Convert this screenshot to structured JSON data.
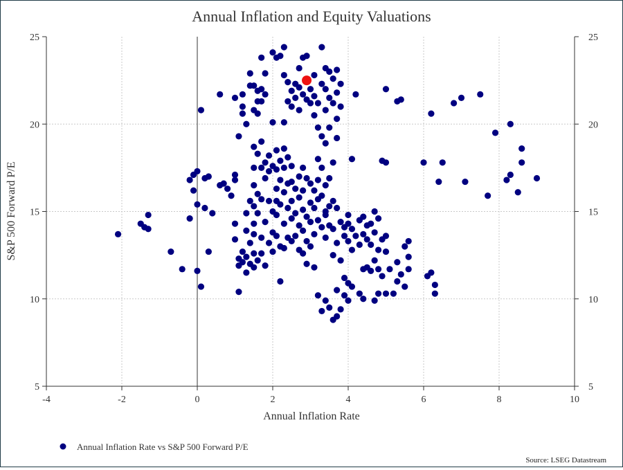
{
  "chart_data": {
    "type": "scatter",
    "title": "Annual Inflation and Equity Valuations",
    "xlabel": "Annual Inflation Rate",
    "ylabel": "S&P 500 Forward P/E",
    "xlim": [
      -4,
      10
    ],
    "ylim": [
      5,
      25
    ],
    "x_ticks": [
      -4,
      -2,
      0,
      2,
      4,
      6,
      8,
      10
    ],
    "y_ticks": [
      5,
      10,
      15,
      20,
      25
    ],
    "grid": true,
    "right_axis": true,
    "zero_line": true,
    "legend_position": "bottom-left",
    "source": "Source: LSEG Datastream",
    "colors": {
      "series": "#000080",
      "highlight": "#ee1111"
    },
    "series": [
      {
        "name": "Annual Inflation Rate vs S&P 500 Forward P/E",
        "points": [
          [
            -2.1,
            13.7
          ],
          [
            -1.5,
            14.3
          ],
          [
            -1.4,
            14.1
          ],
          [
            -1.3,
            14.8
          ],
          [
            -1.3,
            14.0
          ],
          [
            -0.7,
            12.7
          ],
          [
            -0.4,
            11.7
          ],
          [
            -0.2,
            16.8
          ],
          [
            -0.2,
            14.6
          ],
          [
            -0.1,
            16.2
          ],
          [
            -0.1,
            17.1
          ],
          [
            0.0,
            17.3
          ],
          [
            0.0,
            15.4
          ],
          [
            0.0,
            11.6
          ],
          [
            0.1,
            20.8
          ],
          [
            0.1,
            10.7
          ],
          [
            0.2,
            15.2
          ],
          [
            0.2,
            16.9
          ],
          [
            0.3,
            12.7
          ],
          [
            0.3,
            17.0
          ],
          [
            0.4,
            14.9
          ],
          [
            0.6,
            16.5
          ],
          [
            0.6,
            21.7
          ],
          [
            0.7,
            16.6
          ],
          [
            0.8,
            16.3
          ],
          [
            0.9,
            15.9
          ],
          [
            1.0,
            17.1
          ],
          [
            1.0,
            16.8
          ],
          [
            1.0,
            14.3
          ],
          [
            1.0,
            21.5
          ],
          [
            1.0,
            13.4
          ],
          [
            1.1,
            10.4
          ],
          [
            1.1,
            12.3
          ],
          [
            1.1,
            11.9
          ],
          [
            1.1,
            19.3
          ],
          [
            1.2,
            21.7
          ],
          [
            1.2,
            21.0
          ],
          [
            1.2,
            20.6
          ],
          [
            1.2,
            12.7
          ],
          [
            1.2,
            12.1
          ],
          [
            1.3,
            11.5
          ],
          [
            1.3,
            12.4
          ],
          [
            1.3,
            14.9
          ],
          [
            1.3,
            13.9
          ],
          [
            1.3,
            20.0
          ],
          [
            1.4,
            22.2
          ],
          [
            1.4,
            22.9
          ],
          [
            1.4,
            15.6
          ],
          [
            1.4,
            13.2
          ],
          [
            1.4,
            12.0
          ],
          [
            1.5,
            22.2
          ],
          [
            1.5,
            20.8
          ],
          [
            1.5,
            18.7
          ],
          [
            1.5,
            17.5
          ],
          [
            1.5,
            16.5
          ],
          [
            1.5,
            15.3
          ],
          [
            1.5,
            14.3
          ],
          [
            1.5,
            13.7
          ],
          [
            1.5,
            12.6
          ],
          [
            1.5,
            11.8
          ],
          [
            1.6,
            21.9
          ],
          [
            1.6,
            21.3
          ],
          [
            1.6,
            20.6
          ],
          [
            1.6,
            18.3
          ],
          [
            1.6,
            16.0
          ],
          [
            1.6,
            14.9
          ],
          [
            1.6,
            12.2
          ],
          [
            1.7,
            23.8
          ],
          [
            1.7,
            22.0
          ],
          [
            1.7,
            21.3
          ],
          [
            1.7,
            19.0
          ],
          [
            1.7,
            17.5
          ],
          [
            1.7,
            15.7
          ],
          [
            1.7,
            13.5
          ],
          [
            1.7,
            12.6
          ],
          [
            1.8,
            22.9
          ],
          [
            1.8,
            21.7
          ],
          [
            1.8,
            17.8
          ],
          [
            1.8,
            16.9
          ],
          [
            1.8,
            14.4
          ],
          [
            1.8,
            11.9
          ],
          [
            1.9,
            18.2
          ],
          [
            1.9,
            17.3
          ],
          [
            1.9,
            15.6
          ],
          [
            1.9,
            13.2
          ],
          [
            2.0,
            24.1
          ],
          [
            2.0,
            20.1
          ],
          [
            2.0,
            17.6
          ],
          [
            2.0,
            15.0
          ],
          [
            2.0,
            13.8
          ],
          [
            2.0,
            12.7
          ],
          [
            2.1,
            23.8
          ],
          [
            2.1,
            18.5
          ],
          [
            2.1,
            17.4
          ],
          [
            2.1,
            16.3
          ],
          [
            2.1,
            14.8
          ],
          [
            2.1,
            13.6
          ],
          [
            2.2,
            23.9
          ],
          [
            2.2,
            17.9
          ],
          [
            2.2,
            16.8
          ],
          [
            2.2,
            15.4
          ],
          [
            2.2,
            13.0
          ],
          [
            2.2,
            11.0
          ],
          [
            2.3,
            24.4
          ],
          [
            2.3,
            22.8
          ],
          [
            2.3,
            20.1
          ],
          [
            2.3,
            18.6
          ],
          [
            2.3,
            17.5
          ],
          [
            2.3,
            16.1
          ],
          [
            2.3,
            14.3
          ],
          [
            2.3,
            12.9
          ],
          [
            2.4,
            22.4
          ],
          [
            2.4,
            21.3
          ],
          [
            2.4,
            18.1
          ],
          [
            2.4,
            16.6
          ],
          [
            2.4,
            15.2
          ],
          [
            2.4,
            13.5
          ],
          [
            2.5,
            21.9
          ],
          [
            2.5,
            21.0
          ],
          [
            2.5,
            17.6
          ],
          [
            2.5,
            16.7
          ],
          [
            2.5,
            15.6
          ],
          [
            2.5,
            14.6
          ],
          [
            2.5,
            13.3
          ],
          [
            2.6,
            22.3
          ],
          [
            2.6,
            21.5
          ],
          [
            2.6,
            16.3
          ],
          [
            2.6,
            14.9
          ],
          [
            2.6,
            13.6
          ],
          [
            2.7,
            23.2
          ],
          [
            2.7,
            22.1
          ],
          [
            2.7,
            20.8
          ],
          [
            2.7,
            17.0
          ],
          [
            2.7,
            15.8
          ],
          [
            2.7,
            14.2
          ],
          [
            2.7,
            12.8
          ],
          [
            2.8,
            23.8
          ],
          [
            2.8,
            21.7
          ],
          [
            2.8,
            17.5
          ],
          [
            2.8,
            16.2
          ],
          [
            2.8,
            15.1
          ],
          [
            2.8,
            13.9
          ],
          [
            2.8,
            12.6
          ],
          [
            2.9,
            23.9
          ],
          [
            2.9,
            21.4
          ],
          [
            2.9,
            16.9
          ],
          [
            2.9,
            14.7
          ],
          [
            2.9,
            13.3
          ],
          [
            2.9,
            12.0
          ],
          [
            3.0,
            22.0
          ],
          [
            3.0,
            21.2
          ],
          [
            3.0,
            16.6
          ],
          [
            3.0,
            15.5
          ],
          [
            3.0,
            14.4
          ],
          [
            3.0,
            13.0
          ],
          [
            3.1,
            22.8
          ],
          [
            3.1,
            21.6
          ],
          [
            3.1,
            20.5
          ],
          [
            3.1,
            16.2
          ],
          [
            3.1,
            15.2
          ],
          [
            3.1,
            13.7
          ],
          [
            3.1,
            11.8
          ],
          [
            3.2,
            21.2
          ],
          [
            3.2,
            19.8
          ],
          [
            3.2,
            18.0
          ],
          [
            3.2,
            16.8
          ],
          [
            3.2,
            15.7
          ],
          [
            3.2,
            14.5
          ],
          [
            3.2,
            10.2
          ],
          [
            3.3,
            24.4
          ],
          [
            3.3,
            22.3
          ],
          [
            3.3,
            19.3
          ],
          [
            3.3,
            17.5
          ],
          [
            3.3,
            15.9
          ],
          [
            3.3,
            14.1
          ],
          [
            3.3,
            9.3
          ],
          [
            3.4,
            23.2
          ],
          [
            3.4,
            22.0
          ],
          [
            3.4,
            20.8
          ],
          [
            3.4,
            18.9
          ],
          [
            3.4,
            16.5
          ],
          [
            3.4,
            15.0
          ],
          [
            3.4,
            13.5
          ],
          [
            3.4,
            9.9
          ],
          [
            3.5,
            23.0
          ],
          [
            3.5,
            21.5
          ],
          [
            3.5,
            19.8
          ],
          [
            3.5,
            16.9
          ],
          [
            3.5,
            15.3
          ],
          [
            3.5,
            14.2
          ],
          [
            3.5,
            9.5
          ],
          [
            3.6,
            22.6
          ],
          [
            3.6,
            21.2
          ],
          [
            3.6,
            17.8
          ],
          [
            3.6,
            15.6
          ],
          [
            3.6,
            14.0
          ],
          [
            3.6,
            12.5
          ],
          [
            3.6,
            8.8
          ],
          [
            3.7,
            23.1
          ],
          [
            3.7,
            21.8
          ],
          [
            3.7,
            20.3
          ],
          [
            3.7,
            19.2
          ],
          [
            3.7,
            15.2
          ],
          [
            3.7,
            13.2
          ],
          [
            3.7,
            10.5
          ],
          [
            3.7,
            9.0
          ],
          [
            3.8,
            22.3
          ],
          [
            3.8,
            21.0
          ],
          [
            3.8,
            14.4
          ],
          [
            3.8,
            12.2
          ],
          [
            3.8,
            9.4
          ],
          [
            3.9,
            14.1
          ],
          [
            3.9,
            13.6
          ],
          [
            3.9,
            11.2
          ],
          [
            3.9,
            10.2
          ],
          [
            4.0,
            14.8
          ],
          [
            4.0,
            14.3
          ],
          [
            4.0,
            13.3
          ],
          [
            4.0,
            10.9
          ],
          [
            4.0,
            9.9
          ],
          [
            4.1,
            18.0
          ],
          [
            4.1,
            14.0
          ],
          [
            4.1,
            12.8
          ],
          [
            4.1,
            10.7
          ],
          [
            4.2,
            21.7
          ],
          [
            4.2,
            13.6
          ],
          [
            4.3,
            14.5
          ],
          [
            4.3,
            13.1
          ],
          [
            4.3,
            10.3
          ],
          [
            4.4,
            14.7
          ],
          [
            4.4,
            13.7
          ],
          [
            4.4,
            11.7
          ],
          [
            4.4,
            10.0
          ],
          [
            4.5,
            14.2
          ],
          [
            4.5,
            13.4
          ],
          [
            4.5,
            11.8
          ],
          [
            4.6,
            14.3
          ],
          [
            4.6,
            13.1
          ],
          [
            4.6,
            11.6
          ],
          [
            4.7,
            15.0
          ],
          [
            4.7,
            13.8
          ],
          [
            4.7,
            12.2
          ],
          [
            4.7,
            9.9
          ],
          [
            4.8,
            14.6
          ],
          [
            4.8,
            12.8
          ],
          [
            4.8,
            11.7
          ],
          [
            4.8,
            10.3
          ],
          [
            4.9,
            13.4
          ],
          [
            4.9,
            11.3
          ],
          [
            4.9,
            17.9
          ],
          [
            5.0,
            22.0
          ],
          [
            5.0,
            17.8
          ],
          [
            5.0,
            13.6
          ],
          [
            5.0,
            12.7
          ],
          [
            5.0,
            10.3
          ],
          [
            5.1,
            11.7
          ],
          [
            5.2,
            10.3
          ],
          [
            5.3,
            21.3
          ],
          [
            5.3,
            12.1
          ],
          [
            5.3,
            11.0
          ],
          [
            5.4,
            21.4
          ],
          [
            5.4,
            11.4
          ],
          [
            5.5,
            13.0
          ],
          [
            5.5,
            10.7
          ],
          [
            5.6,
            12.4
          ],
          [
            5.6,
            13.3
          ],
          [
            5.6,
            11.7
          ],
          [
            6.0,
            17.8
          ],
          [
            6.1,
            11.3
          ],
          [
            6.2,
            20.6
          ],
          [
            6.2,
            11.5
          ],
          [
            6.3,
            10.8
          ],
          [
            6.3,
            10.3
          ],
          [
            6.4,
            16.7
          ],
          [
            6.5,
            17.8
          ],
          [
            6.8,
            21.2
          ],
          [
            7.0,
            21.5
          ],
          [
            7.1,
            16.7
          ],
          [
            7.5,
            21.7
          ],
          [
            7.7,
            15.9
          ],
          [
            7.9,
            19.5
          ],
          [
            8.2,
            16.8
          ],
          [
            8.3,
            17.1
          ],
          [
            8.3,
            20.0
          ],
          [
            8.5,
            16.1
          ],
          [
            8.6,
            18.6
          ],
          [
            8.6,
            17.8
          ],
          [
            9.0,
            16.9
          ],
          [
            3.4,
            14.8
          ],
          [
            2.1,
            15.6
          ]
        ]
      }
    ],
    "highlight_point": [
      2.9,
      22.5
    ]
  }
}
